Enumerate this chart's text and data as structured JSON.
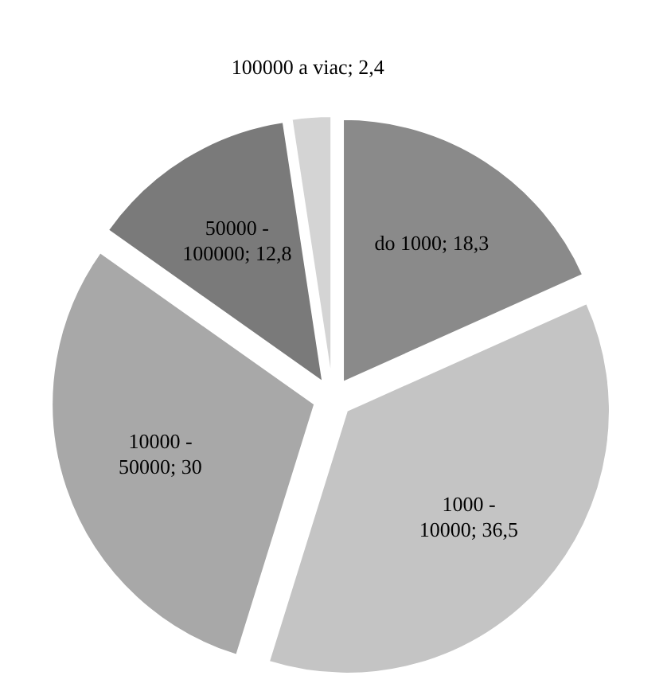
{
  "chart_data": {
    "type": "pie",
    "categories": [
      "do 1000",
      "1000 - 10000",
      "10000 - 50000",
      "50000 - 100000",
      "100000 a viac"
    ],
    "values": [
      18.3,
      36.5,
      30,
      12.8,
      2.4
    ],
    "value_labels": [
      "18,3",
      "36,5",
      "30",
      "12,8",
      "2,4"
    ],
    "colors": [
      "#8a8a8a",
      "#c4c4c4",
      "#a8a8a8",
      "#7a7a7a",
      "#d4d4d4"
    ]
  }
}
